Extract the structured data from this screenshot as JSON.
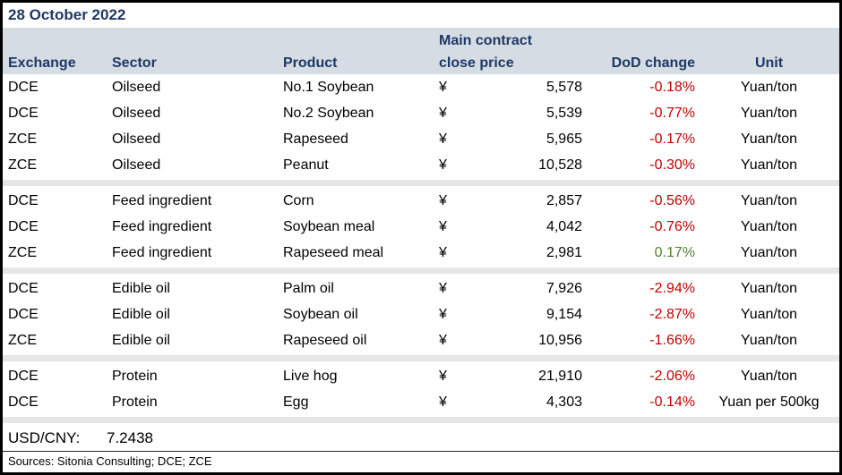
{
  "title": "28 October 2022",
  "table": {
    "headers": {
      "exchange": "Exchange",
      "sector": "Sector",
      "product": "Product",
      "price_line1": "Main contract",
      "price_line2": "close price",
      "dod": "DoD change",
      "unit": "Unit"
    },
    "currency_symbol": "¥",
    "groups": [
      {
        "rows": [
          {
            "exchange": "DCE",
            "sector": "Oilseed",
            "product": "No.1 Soybean",
            "price": "5,578",
            "dod": "-0.18%",
            "direction": "down",
            "unit": "Yuan/ton"
          },
          {
            "exchange": "DCE",
            "sector": "Oilseed",
            "product": "No.2 Soybean",
            "price": "5,539",
            "dod": "-0.77%",
            "direction": "down",
            "unit": "Yuan/ton"
          },
          {
            "exchange": "ZCE",
            "sector": "Oilseed",
            "product": "Rapeseed",
            "price": "5,965",
            "dod": "-0.17%",
            "direction": "down",
            "unit": "Yuan/ton"
          },
          {
            "exchange": "ZCE",
            "sector": "Oilseed",
            "product": "Peanut",
            "price": "10,528",
            "dod": "-0.30%",
            "direction": "down",
            "unit": "Yuan/ton"
          }
        ]
      },
      {
        "rows": [
          {
            "exchange": "DCE",
            "sector": "Feed ingredient",
            "product": "Corn",
            "price": "2,857",
            "dod": "-0.56%",
            "direction": "down",
            "unit": "Yuan/ton"
          },
          {
            "exchange": "DCE",
            "sector": "Feed ingredient",
            "product": "Soybean meal",
            "price": "4,042",
            "dod": "-0.76%",
            "direction": "down",
            "unit": "Yuan/ton"
          },
          {
            "exchange": "ZCE",
            "sector": "Feed ingredient",
            "product": "Rapeseed meal",
            "price": "2,981",
            "dod": "0.17%",
            "direction": "up",
            "unit": "Yuan/ton"
          }
        ]
      },
      {
        "rows": [
          {
            "exchange": "DCE",
            "sector": "Edible oil",
            "product": "Palm oil",
            "price": "7,926",
            "dod": "-2.94%",
            "direction": "down",
            "unit": "Yuan/ton"
          },
          {
            "exchange": "DCE",
            "sector": "Edible oil",
            "product": "Soybean oil",
            "price": "9,154",
            "dod": "-2.87%",
            "direction": "down",
            "unit": "Yuan/ton"
          },
          {
            "exchange": "ZCE",
            "sector": "Edible oil",
            "product": "Rapeseed oil",
            "price": "10,956",
            "dod": "-1.66%",
            "direction": "down",
            "unit": "Yuan/ton"
          }
        ]
      },
      {
        "rows": [
          {
            "exchange": "DCE",
            "sector": "Protein",
            "product": "Live hog",
            "price": "21,910",
            "dod": "-2.06%",
            "direction": "down",
            "unit": "Yuan/ton"
          },
          {
            "exchange": "DCE",
            "sector": "Protein",
            "product": "Egg",
            "price": "4,303",
            "dod": "-0.14%",
            "direction": "down",
            "unit": "Yuan per 500kg"
          }
        ]
      }
    ]
  },
  "footer": {
    "usdcny_label": "USD/CNY:",
    "usdcny_value": "7.2438",
    "sources": "Sources: Sitonia Consulting; DCE; ZCE"
  },
  "colors": {
    "navy": "#1F3864",
    "red": "#C00000",
    "green": "#548235",
    "header_bg": "#D6DCE4",
    "separator_bg": "#E7E6E6"
  }
}
